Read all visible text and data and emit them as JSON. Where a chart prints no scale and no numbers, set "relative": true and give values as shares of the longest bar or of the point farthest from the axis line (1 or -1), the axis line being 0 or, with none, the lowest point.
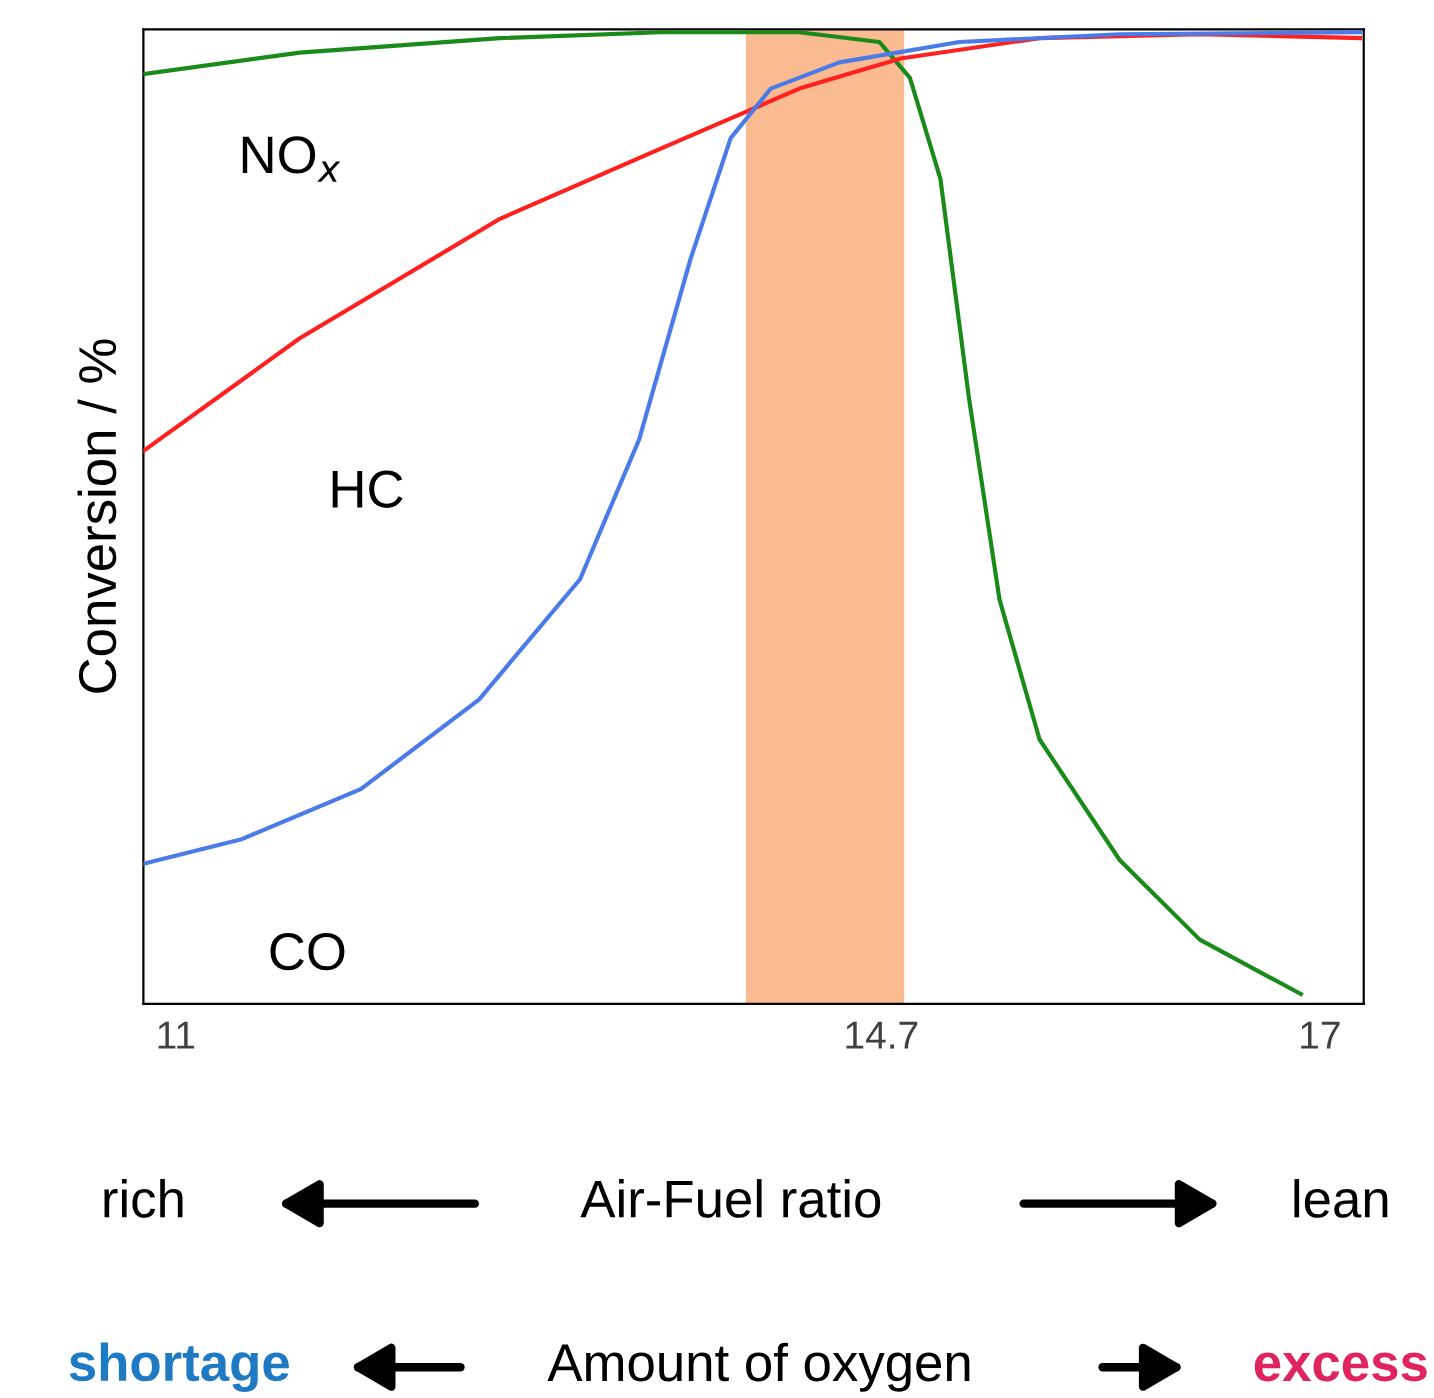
{
  "chart_data": {
    "type": "line",
    "relative": true,
    "ylabel": "Conversion / %",
    "xlim": [
      10.83,
      17.23
    ],
    "xticks": [
      11,
      14.7,
      17
    ],
    "grid": false,
    "legend": false,
    "marker": "none",
    "line_style": "solid",
    "series": [
      {
        "name": "NO$_{x}$",
        "color": "#1a8a1a",
        "x": [
          10.83,
          11.65,
          12.7,
          13.54,
          14.27,
          14.69,
          14.85,
          15.01,
          15.16,
          15.32,
          15.53,
          15.95,
          16.37,
          16.9
        ],
        "values": [
          0.957,
          0.979,
          0.994,
          1.0,
          1.0,
          0.99,
          0.953,
          0.849,
          0.623,
          0.416,
          0.272,
          0.148,
          0.066,
          0.01
        ]
      },
      {
        "name": "HC",
        "color": "#ff2020",
        "x": [
          10.83,
          11.65,
          12.7,
          13.54,
          14.27,
          14.8,
          15.53,
          16.37,
          17.21
        ],
        "values": [
          0.569,
          0.685,
          0.808,
          0.88,
          0.942,
          0.973,
          0.994,
          0.998,
          0.994
        ]
      },
      {
        "name": "CO",
        "color": "#4a7be8",
        "x": [
          10.83,
          11.34,
          11.97,
          12.59,
          13.12,
          13.43,
          13.7,
          13.91,
          14.12,
          14.48,
          15.11,
          15.95,
          17.21
        ],
        "values": [
          0.144,
          0.169,
          0.221,
          0.313,
          0.437,
          0.581,
          0.767,
          0.891,
          0.942,
          0.969,
          0.99,
          0.998,
          1.0
        ]
      }
    ],
    "bands": [
      {
        "axis": "x",
        "from": 13.99,
        "to": 14.82,
        "color": "#f9bb8f"
      }
    ],
    "annotations": [
      "rich",
      "Air-Fuel ratio",
      "lean",
      "shortage",
      "Amount of oxygen",
      "excess"
    ]
  }
}
